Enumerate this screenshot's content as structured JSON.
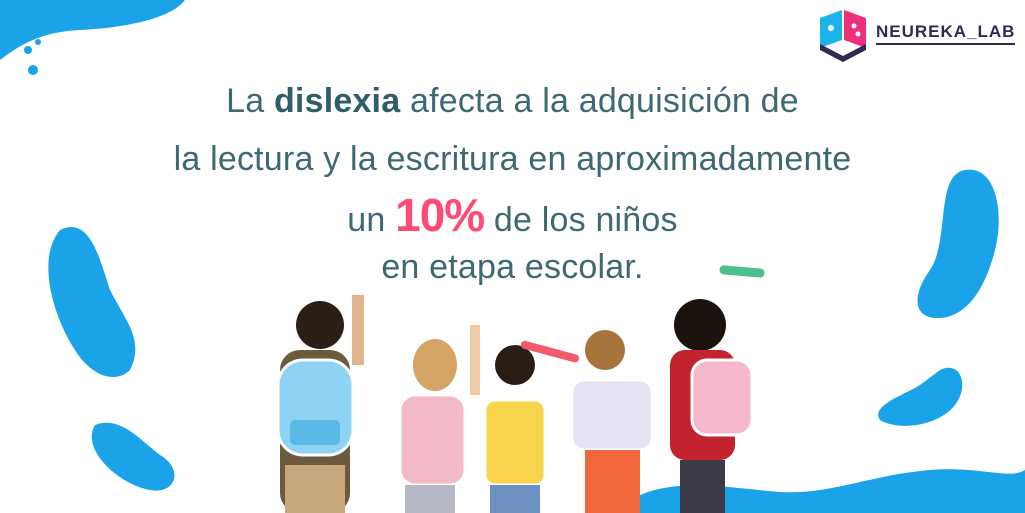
{
  "brand": {
    "name": "NEUREKA_LAB"
  },
  "headline": {
    "line1_pre": "La",
    "line1_bold": "dislexia",
    "line1_post": "afecta a la adquisición de",
    "line2": "la lectura y la escritura en aproximadamente",
    "line3_pre": "un",
    "line3_highlight": "10%",
    "line3_post": "de los niños",
    "line4": "en etapa escolar."
  },
  "colors": {
    "blob": "#1aa3e8",
    "text": "#3e6872",
    "highlight": "#ff4a74",
    "logo_blue": "#1ab3ea",
    "logo_pink": "#ee2f7d",
    "logo_dark": "#2e2a55"
  },
  "illustration": {
    "subject": "children-with-backpacks-drawing-on-wall"
  }
}
